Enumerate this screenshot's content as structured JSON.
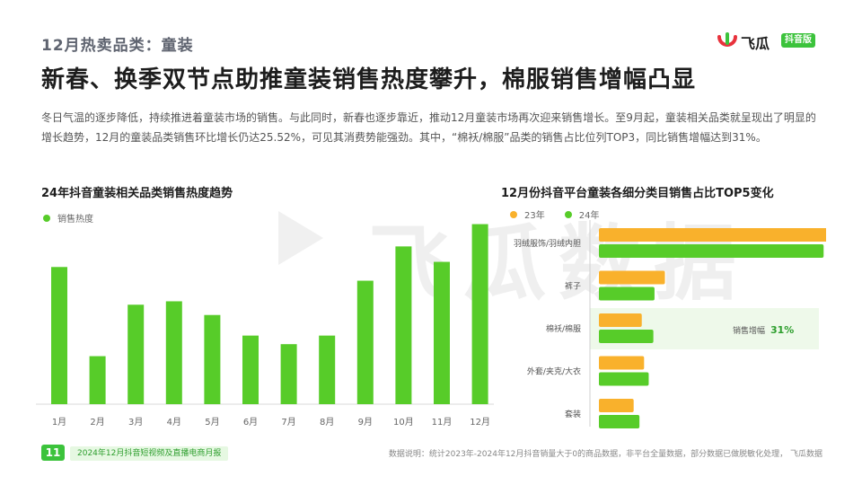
{
  "page": {
    "section_title": "12月热卖品类：童装",
    "headline": "新春、换季双节点助推童装销售热度攀升，棉服销售增幅凸显",
    "body": "冬日气温的逐步降低，持续推进着童装市场的销售。与此同时，新春也逐步靠近，推动12月童装市场再次迎来销售增长。至9月起，童装相关品类就呈现出了明显的增长趋势，12月的童装品类销售环比增长仍达25.52%，可见其消费势能强劲。其中，“棉袄/棉服”品类的销售占比位列TOP3，同比销售增幅达到31%。"
  },
  "logo": {
    "name": "飞瓜",
    "badge": "抖音版"
  },
  "watermark": {
    "text": "飞瓜数据"
  },
  "footer": {
    "page_number": "11",
    "report_name": "2024年12月抖音短视频及直播电商月报",
    "note": "数据说明：统计2023年-2024年12月抖音销量大于0的商品数据，非平台全量数据，部分数据已做脱敏化处理， 飞瓜数据"
  },
  "colors": {
    "green": "#57cc29",
    "orange": "#f9b12c",
    "highlight_bg": "#eef9ea",
    "highlight_text": "#2d9e2d"
  },
  "chart_data": [
    {
      "type": "bar",
      "title": "24年抖音童装相关品类销售热度趋势",
      "categories": [
        "1月",
        "2月",
        "3月",
        "4月",
        "5月",
        "6月",
        "7月",
        "8月",
        "9月",
        "10月",
        "11月",
        "12月"
      ],
      "series": [
        {
          "name": "销售热度",
          "values": [
            80,
            28,
            58,
            60,
            52,
            40,
            35,
            40,
            72,
            92,
            83,
            105
          ]
        }
      ],
      "ylim": [
        0,
        110
      ],
      "grid": false,
      "legend": "top-left"
    },
    {
      "type": "bar",
      "orientation": "horizontal",
      "title": "12月份抖音平台童装各细分类目销售占比TOP5变化",
      "categories": [
        "羽绒服饰/羽绒内胆",
        "裤子",
        "棉袄/棉服",
        "外套/夹克/大衣",
        "套装"
      ],
      "series": [
        {
          "name": "23年",
          "values": [
            100,
            28.5,
            18.5,
            19.5,
            15
          ]
        },
        {
          "name": "24年",
          "values": [
            97,
            24,
            23.5,
            21.5,
            17.5
          ]
        }
      ],
      "xlim": [
        0,
        100
      ],
      "legend": "top-left",
      "annotation": {
        "category": "棉袄/棉服",
        "label": "销售增幅",
        "value": "31%"
      }
    }
  ]
}
